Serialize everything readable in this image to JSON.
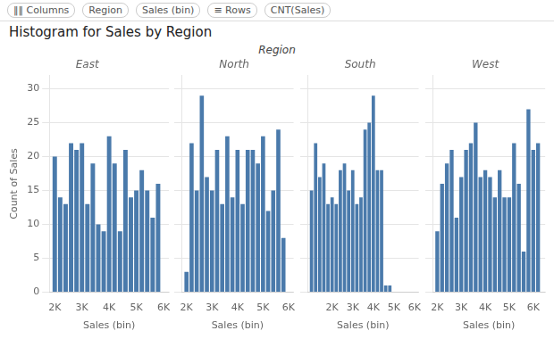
{
  "title": "Histogram for Sales by Region",
  "subtitle": "Region",
  "annotations": [
    "‖‖ Columns",
    "Region",
    "Sales (bin)",
    "≡ Rows",
    "CNT(Sales)"
  ],
  "chart_data": [
    {
      "type": "bar",
      "title": "East",
      "xlabel": "Sales (bin)",
      "ylabel": "Count of Sales",
      "color": "#4a7aab",
      "x": [
        2.0,
        2.2,
        2.4,
        2.6,
        2.8,
        3.0,
        3.2,
        3.4,
        3.6,
        3.8,
        4.0,
        4.2,
        4.4,
        4.6,
        4.8,
        5.0,
        5.2,
        5.4,
        5.6,
        5.8
      ],
      "values": [
        20,
        14,
        13,
        22,
        21,
        22,
        13,
        19,
        10,
        9,
        23,
        19,
        9,
        21,
        14,
        15,
        18,
        15,
        11,
        16
      ],
      "xlim": [
        1.8,
        6.2
      ],
      "xticks": [
        {
          "value": 2,
          "label": "2K"
        },
        {
          "value": 3,
          "label": "3K"
        },
        {
          "value": 4,
          "label": "4K"
        },
        {
          "value": 5,
          "label": "5K"
        },
        {
          "value": 6,
          "label": "6K"
        }
      ],
      "ylim": [
        0,
        32
      ],
      "yticks": [
        0,
        5,
        10,
        15,
        20,
        25,
        30
      ],
      "grid": "y"
    },
    {
      "type": "bar",
      "title": "North",
      "xlabel": "Sales (bin)",
      "color": "#4a7aab",
      "x": [
        2.0,
        2.2,
        2.4,
        2.6,
        2.8,
        3.0,
        3.2,
        3.4,
        3.6,
        3.8,
        4.0,
        4.2,
        4.4,
        4.6,
        4.8,
        5.0,
        5.2,
        5.4,
        5.6,
        5.8
      ],
      "values": [
        3,
        22,
        15,
        29,
        17,
        15,
        21,
        13,
        23,
        14,
        21,
        13,
        21,
        21,
        19,
        23,
        12,
        15,
        24,
        8
      ],
      "xlim": [
        1.8,
        6.2
      ],
      "xticks": [
        {
          "value": 2,
          "label": "2K"
        },
        {
          "value": 3,
          "label": "3K"
        },
        {
          "value": 4,
          "label": "4K"
        },
        {
          "value": 5,
          "label": "5K"
        },
        {
          "value": 6,
          "label": "6K"
        }
      ],
      "ylim": [
        0,
        32
      ],
      "yticks": [
        0,
        5,
        10,
        15,
        20,
        25,
        30
      ],
      "grid": "y",
      "tick_labels": "x"
    },
    {
      "type": "bar",
      "title": "South",
      "xlabel": "Sales (bin)",
      "color": "#4a7aab",
      "x": [
        1.0,
        1.2,
        1.4,
        1.6,
        1.8,
        2.0,
        2.2,
        2.4,
        2.6,
        2.8,
        3.0,
        3.2,
        3.4,
        3.6,
        3.8,
        4.0,
        4.2,
        4.4,
        4.6,
        4.8
      ],
      "values": [
        15,
        22,
        17,
        19,
        13,
        14,
        13,
        18,
        19,
        15,
        18,
        13,
        14,
        24,
        25,
        29,
        18,
        18,
        1,
        1
      ],
      "xlim": [
        0.8,
        6.2
      ],
      "xticks": [
        {
          "value": 2,
          "label": "2K"
        },
        {
          "value": 3,
          "label": "3K"
        },
        {
          "value": 4,
          "label": "4K"
        },
        {
          "value": 5,
          "label": "5K"
        },
        {
          "value": 6,
          "label": "6K"
        }
      ],
      "ylim": [
        0,
        32
      ],
      "yticks": [
        0,
        5,
        10,
        15,
        20,
        25,
        30
      ],
      "grid": "y",
      "tick_labels": "x"
    },
    {
      "type": "bar",
      "title": "West",
      "xlabel": "Sales (bin)",
      "color": "#4a7aab",
      "x": [
        2.0,
        2.2,
        2.4,
        2.6,
        2.8,
        3.0,
        3.2,
        3.4,
        3.6,
        3.8,
        4.0,
        4.2,
        4.4,
        4.6,
        4.8,
        5.0,
        5.2,
        5.4,
        5.6,
        5.8,
        6.0,
        6.2
      ],
      "values": [
        9,
        16,
        19,
        21,
        11,
        17,
        21,
        22,
        25,
        17,
        18,
        17,
        14,
        18,
        14,
        14,
        22,
        16,
        6,
        27,
        21,
        22
      ],
      "xlim": [
        1.8,
        6.5
      ],
      "xticks": [
        {
          "value": 2,
          "label": "2K"
        },
        {
          "value": 3,
          "label": "3K"
        },
        {
          "value": 4,
          "label": "4K"
        },
        {
          "value": 5,
          "label": "5K"
        },
        {
          "value": 6,
          "label": "6K"
        }
      ],
      "ylim": [
        0,
        32
      ],
      "yticks": [
        0,
        5,
        10,
        15,
        20,
        25,
        30
      ],
      "grid": "y",
      "tick_labels": "x"
    }
  ]
}
